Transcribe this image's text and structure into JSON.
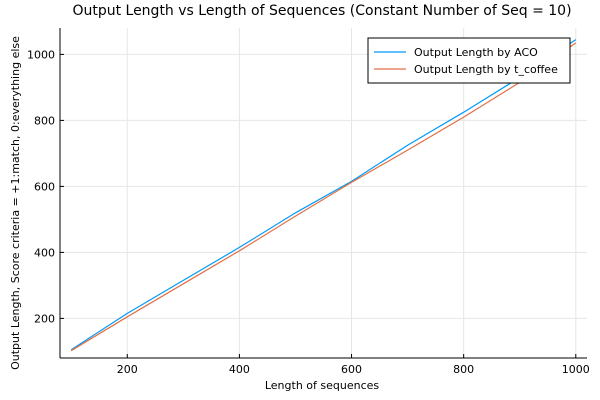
{
  "chart_data": {
    "type": "line",
    "title": "Output Length vs Length of Sequences (Constant Number of Seq = 10)",
    "xlabel": "Length of sequences",
    "ylabel": "Output Length, Score criteria = +1:match, 0:everything else",
    "xlim": [
      80,
      1020
    ],
    "ylim": [
      80,
      1080
    ],
    "xticks": [
      200,
      400,
      600,
      800,
      1000
    ],
    "yticks": [
      200,
      400,
      600,
      800,
      1000
    ],
    "grid": true,
    "legend_position": "top-right",
    "series": [
      {
        "name": "Output Length by ACO",
        "color": "#009AFA",
        "x": [
          100,
          200,
          300,
          400,
          500,
          600,
          700,
          800,
          900,
          1000
        ],
        "y": [
          105,
          215,
          315,
          415,
          520,
          615,
          725,
          825,
          930,
          1045
        ]
      },
      {
        "name": "Output Length by t_coffee",
        "color": "#E26F46",
        "x": [
          100,
          200,
          300,
          400,
          500,
          600,
          700,
          800,
          900,
          1000
        ],
        "y": [
          102,
          205,
          305,
          405,
          510,
          612,
          710,
          810,
          915,
          1035
        ]
      }
    ]
  }
}
